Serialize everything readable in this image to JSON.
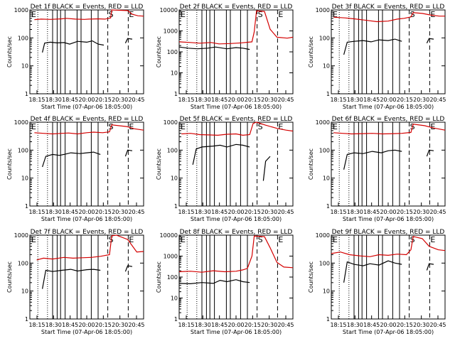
{
  "colors": {
    "events": "#000000",
    "lld": "#d40000",
    "axis": "#000000",
    "background": "#ffffff"
  },
  "chart_data": [
    {
      "type": "line",
      "title": "Det 1f BLACK = Events, RED = LLD",
      "xlabel": "Start Time (07-Apr-06 18:05:00)",
      "ylabel": "Counts/sec",
      "yscale": "log",
      "ylim": [
        1,
        1000
      ],
      "yticks": [
        "1",
        "10",
        "100",
        "1000"
      ],
      "xticks": [
        "18:15",
        "18:30",
        "18:45",
        "20:00",
        "20:15",
        "20:30",
        "20:45"
      ],
      "markers": [
        "S",
        "E"
      ],
      "series": [
        {
          "name": "LLD",
          "x": [
            0.04,
            0.1,
            0.18,
            0.28,
            0.32,
            0.4,
            0.48,
            0.52,
            0.6,
            0.66,
            0.71,
            0.72,
            0.86,
            0.9,
            0.95,
            1.0
          ],
          "values": [
            450,
            470,
            460,
            480,
            500,
            470,
            460,
            470,
            480,
            470,
            520,
            1000,
            950,
            700,
            620,
            600
          ]
        },
        {
          "name": "Events",
          "x": [
            0.11,
            0.13,
            0.18,
            0.24,
            0.3,
            0.35,
            0.42,
            0.5,
            0.55,
            0.6,
            0.65
          ],
          "values": [
            30,
            65,
            70,
            66,
            68,
            60,
            75,
            70,
            78,
            60,
            55
          ]
        },
        {
          "name": "Events",
          "x": [
            0.84,
            0.86,
            0.9
          ],
          "values": [
            65,
            95,
            90
          ]
        }
      ]
    },
    {
      "type": "line",
      "title": "Det 2f BLACK = Events, RED = LLD",
      "xlabel": "Start Time (07-Apr-06 18:05:00)",
      "ylabel": "Counts/sec",
      "yscale": "log",
      "ylim": [
        1,
        10000
      ],
      "yticks": [
        "1",
        "10",
        "100",
        "1000",
        "10000"
      ],
      "xticks": [
        "18:15",
        "18:30",
        "18:45",
        "20:00",
        "20:15",
        "20:30",
        "20:45"
      ],
      "markers": [
        "S",
        "E"
      ],
      "series": [
        {
          "name": "LLD",
          "x": [
            0.0,
            0.1,
            0.18,
            0.28,
            0.35,
            0.45,
            0.55,
            0.64,
            0.66,
            0.68,
            0.75,
            0.8,
            0.86,
            0.95,
            1.0
          ],
          "values": [
            300,
            280,
            260,
            280,
            240,
            250,
            270,
            300,
            900,
            9000,
            8500,
            1200,
            500,
            450,
            500
          ]
        },
        {
          "name": "Events",
          "x": [
            0.0,
            0.08,
            0.16,
            0.25,
            0.32,
            0.42,
            0.5,
            0.56,
            0.62
          ],
          "values": [
            170,
            150,
            140,
            150,
            170,
            140,
            160,
            150,
            130
          ]
        }
      ]
    },
    {
      "type": "line",
      "title": "Det 3f BLACK = Events, RED = LLD",
      "xlabel": "Start Time (07-Apr-06 18:05:00)",
      "ylabel": "Counts/sec",
      "yscale": "log",
      "ylim": [
        1,
        1000
      ],
      "yticks": [
        "1",
        "10",
        "100",
        "1000"
      ],
      "xticks": [
        "18:15",
        "18:30",
        "18:45",
        "20:00",
        "20:15",
        "20:30",
        "20:45"
      ],
      "markers": [
        "S",
        "E"
      ],
      "series": [
        {
          "name": "LLD",
          "x": [
            0.02,
            0.12,
            0.2,
            0.32,
            0.4,
            0.5,
            0.58,
            0.64,
            0.7,
            0.72,
            0.8,
            0.88,
            0.95,
            1.0
          ],
          "values": [
            550,
            520,
            480,
            420,
            380,
            400,
            470,
            500,
            560,
            800,
            750,
            650,
            600,
            600
          ]
        },
        {
          "name": "Events",
          "x": [
            0.11,
            0.14,
            0.2,
            0.28,
            0.35,
            0.42,
            0.5,
            0.56,
            0.62
          ],
          "values": [
            25,
            70,
            75,
            80,
            72,
            85,
            80,
            90,
            75
          ]
        },
        {
          "name": "Events",
          "x": [
            0.84,
            0.86,
            0.9
          ],
          "values": [
            65,
            95,
            90
          ]
        }
      ]
    },
    {
      "type": "line",
      "title": "Det 4f BLACK = Events, RED = LLD",
      "xlabel": "Start Time (07-Apr-06 18:05:00)",
      "ylabel": "Counts/sec",
      "yscale": "log",
      "ylim": [
        1,
        1000
      ],
      "yticks": [
        "1",
        "10",
        "100",
        "1000"
      ],
      "xticks": [
        "18:15",
        "18:30",
        "18:45",
        "20:00",
        "20:15",
        "20:30",
        "20:45"
      ],
      "markers": [
        "S",
        "E"
      ],
      "series": [
        {
          "name": "LLD",
          "x": [
            0.04,
            0.12,
            0.2,
            0.28,
            0.34,
            0.42,
            0.5,
            0.56,
            0.64,
            0.7,
            0.72,
            0.85,
            0.92,
            1.0
          ],
          "values": [
            420,
            400,
            380,
            400,
            410,
            380,
            420,
            440,
            420,
            450,
            800,
            700,
            580,
            520
          ]
        },
        {
          "name": "Events",
          "x": [
            0.11,
            0.14,
            0.2,
            0.26,
            0.3,
            0.36,
            0.44,
            0.5,
            0.56,
            0.62
          ],
          "values": [
            25,
            60,
            70,
            65,
            70,
            80,
            75,
            80,
            85,
            70
          ]
        },
        {
          "name": "Events",
          "x": [
            0.84,
            0.86,
            0.9
          ],
          "values": [
            60,
            100,
            95
          ]
        }
      ]
    },
    {
      "type": "line",
      "title": "Det 5f BLACK = Events, RED = LLD",
      "xlabel": "Start Time (07-Apr-06 18:05:00)",
      "ylabel": "Counts/sec",
      "yscale": "log",
      "ylim": [
        1,
        1000
      ],
      "yticks": [
        "1",
        "10",
        "100",
        "1000"
      ],
      "xticks": [
        "18:15",
        "18:30",
        "18:45",
        "20:00",
        "20:15",
        "20:30",
        "20:45"
      ],
      "markers": [
        "S",
        "E"
      ],
      "series": [
        {
          "name": "LLD",
          "x": [
            0.02,
            0.1,
            0.18,
            0.26,
            0.34,
            0.42,
            0.5,
            0.56,
            0.62,
            0.65,
            0.68,
            0.76,
            0.86,
            0.94,
            1.0
          ],
          "values": [
            380,
            400,
            360,
            350,
            340,
            370,
            380,
            340,
            360,
            900,
            1000,
            780,
            600,
            520,
            480
          ]
        },
        {
          "name": "Events",
          "x": [
            0.12,
            0.15,
            0.2,
            0.3,
            0.36,
            0.42,
            0.5,
            0.56,
            0.62
          ],
          "values": [
            30,
            110,
            130,
            140,
            150,
            130,
            160,
            150,
            130
          ]
        },
        {
          "name": "Events",
          "x": [
            0.74,
            0.76,
            0.8
          ],
          "values": [
            8,
            40,
            60
          ]
        }
      ]
    },
    {
      "type": "line",
      "title": "Det 6f BLACK = Events, RED = LLD",
      "xlabel": "Start Time (07-Apr-06 18:05:00)",
      "ylabel": "Counts/sec",
      "yscale": "log",
      "ylim": [
        1,
        1000
      ],
      "yticks": [
        "1",
        "10",
        "100",
        "1000"
      ],
      "xticks": [
        "18:15",
        "18:30",
        "18:45",
        "20:00",
        "20:15",
        "20:30",
        "20:45"
      ],
      "markers": [
        "S",
        "E"
      ],
      "series": [
        {
          "name": "LLD",
          "x": [
            0.02,
            0.1,
            0.18,
            0.28,
            0.36,
            0.45,
            0.55,
            0.62,
            0.7,
            0.72,
            0.82,
            0.9,
            1.0
          ],
          "values": [
            420,
            400,
            380,
            390,
            400,
            380,
            390,
            400,
            430,
            850,
            750,
            620,
            520
          ]
        },
        {
          "name": "Events",
          "x": [
            0.11,
            0.14,
            0.2,
            0.28,
            0.36,
            0.44,
            0.5,
            0.56,
            0.62
          ],
          "values": [
            20,
            70,
            80,
            75,
            90,
            80,
            95,
            100,
            90
          ]
        },
        {
          "name": "Events",
          "x": [
            0.84,
            0.86,
            0.9
          ],
          "values": [
            60,
            100,
            95
          ]
        }
      ]
    },
    {
      "type": "line",
      "title": "Det 7f BLACK = Events, RED = LLD",
      "xlabel": "Start Time (07-Apr-06 18:05:00)",
      "ylabel": "Counts/sec",
      "yscale": "log",
      "ylim": [
        1,
        1000
      ],
      "yticks": [
        "1",
        "10",
        "100",
        "1000"
      ],
      "xticks": [
        "18:15",
        "18:30",
        "18:45",
        "20:00",
        "20:15",
        "20:30",
        "20:45"
      ],
      "markers": [
        "S",
        "E"
      ],
      "series": [
        {
          "name": "LLD",
          "x": [
            0.06,
            0.12,
            0.2,
            0.3,
            0.38,
            0.46,
            0.54,
            0.62,
            0.7,
            0.72,
            0.76,
            0.86,
            0.94,
            1.0
          ],
          "values": [
            130,
            150,
            140,
            160,
            150,
            155,
            160,
            175,
            200,
            950,
            1000,
            700,
            250,
            260
          ]
        },
        {
          "name": "Events",
          "x": [
            0.11,
            0.14,
            0.2,
            0.28,
            0.36,
            0.42,
            0.5,
            0.56,
            0.62
          ],
          "values": [
            12,
            55,
            50,
            55,
            60,
            52,
            58,
            60,
            55
          ]
        },
        {
          "name": "Events",
          "x": [
            0.84,
            0.86,
            0.9
          ],
          "values": [
            50,
            80,
            75
          ]
        }
      ]
    },
    {
      "type": "line",
      "title": "Det 8f BLACK = Events, RED = LLD",
      "xlabel": "Start Time (07-Apr-06 18:05:00)",
      "ylabel": "Counts/sec",
      "yscale": "log",
      "ylim": [
        1,
        10000
      ],
      "yticks": [
        "1",
        "10",
        "100",
        "1000",
        "10000"
      ],
      "xticks": [
        "18:15",
        "18:30",
        "18:45",
        "20:00",
        "20:15",
        "20:30",
        "20:45"
      ],
      "markers": [
        "S",
        "E"
      ],
      "series": [
        {
          "name": "LLD",
          "x": [
            0.0,
            0.1,
            0.2,
            0.3,
            0.4,
            0.5,
            0.56,
            0.6,
            0.64,
            0.66,
            0.75,
            0.8,
            0.86,
            0.92,
            1.0
          ],
          "values": [
            180,
            190,
            170,
            200,
            180,
            190,
            220,
            260,
            1000,
            9000,
            8500,
            2500,
            500,
            300,
            280
          ]
        },
        {
          "name": "Events",
          "x": [
            0.0,
            0.1,
            0.2,
            0.3,
            0.36,
            0.42,
            0.5,
            0.56,
            0.62
          ],
          "values": [
            50,
            48,
            55,
            50,
            70,
            60,
            75,
            60,
            55
          ]
        }
      ]
    },
    {
      "type": "line",
      "title": "Det 9f BLACK = Events, RED = LLD",
      "xlabel": "Start Time (07-Apr-06 18:05:00)",
      "ylabel": "Counts/sec",
      "yscale": "log",
      "ylim": [
        1,
        1000
      ],
      "yticks": [
        "1",
        "10",
        "100",
        "1000"
      ],
      "xticks": [
        "18:15",
        "18:30",
        "18:45",
        "20:00",
        "20:15",
        "20:30",
        "20:45"
      ],
      "markers": [
        "S",
        "E"
      ],
      "series": [
        {
          "name": "LLD",
          "x": [
            0.0,
            0.08,
            0.16,
            0.26,
            0.34,
            0.42,
            0.5,
            0.58,
            0.66,
            0.7,
            0.72,
            0.8,
            0.86,
            0.94,
            1.0
          ],
          "values": [
            220,
            250,
            200,
            180,
            170,
            200,
            190,
            210,
            200,
            300,
            900,
            750,
            400,
            300,
            280
          ]
        },
        {
          "name": "Events",
          "x": [
            0.11,
            0.14,
            0.2,
            0.28,
            0.34,
            0.42,
            0.5,
            0.56,
            0.62
          ],
          "values": [
            20,
            110,
            90,
            80,
            95,
            85,
            120,
            100,
            90
          ]
        },
        {
          "name": "Events",
          "x": [
            0.84,
            0.86,
            0.9
          ],
          "values": [
            55,
            95,
            90
          ]
        }
      ]
    }
  ]
}
